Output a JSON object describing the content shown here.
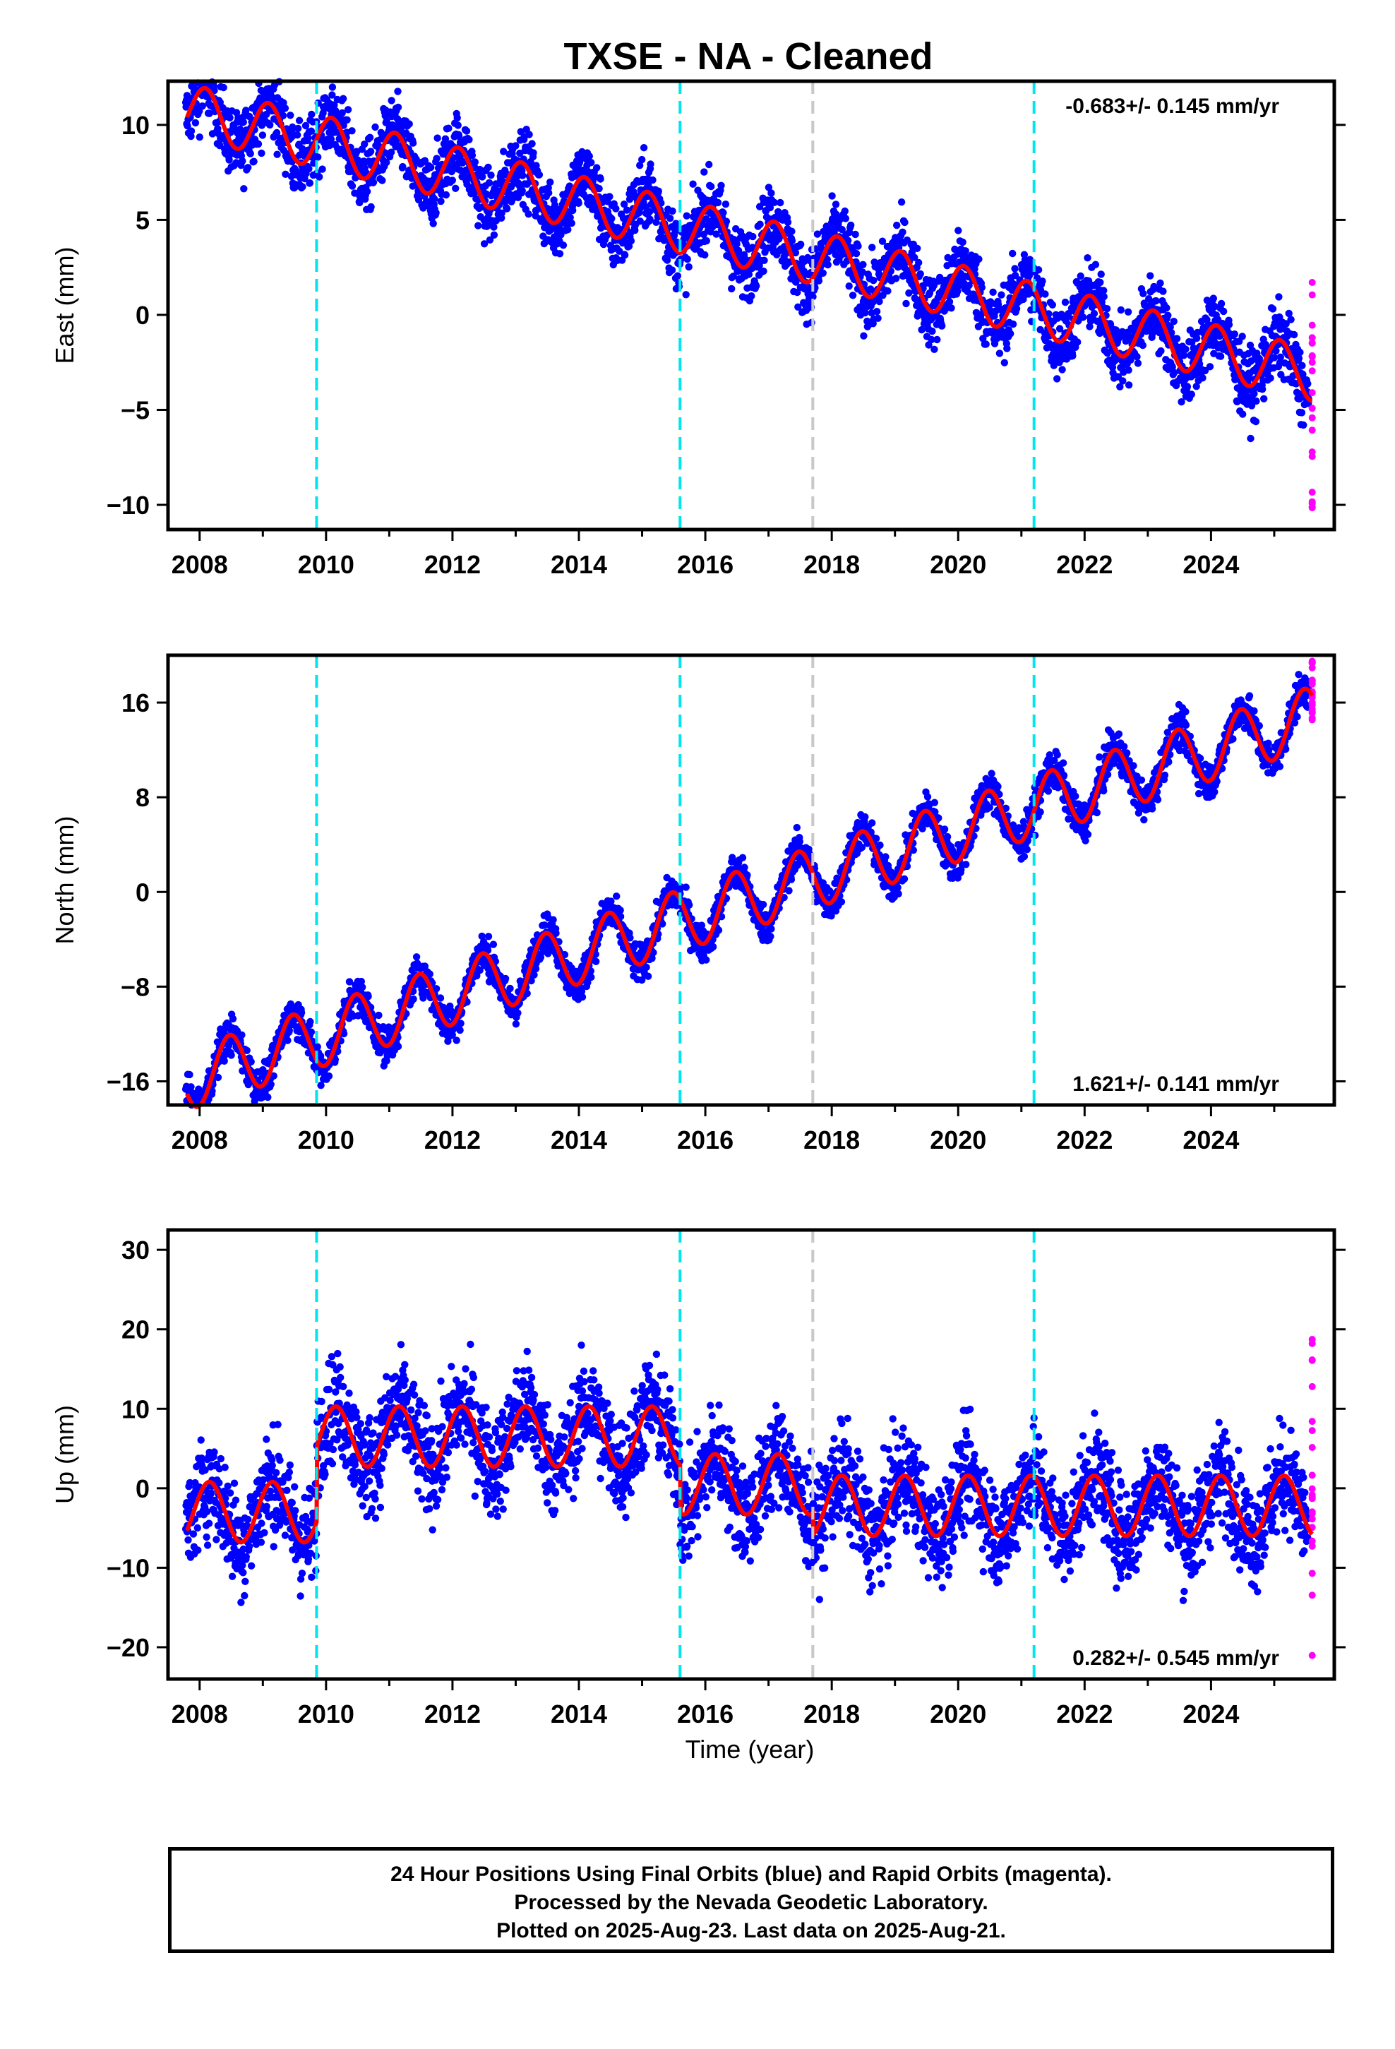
{
  "chart_data": {
    "title": "TXSE  - NA - Cleaned",
    "xlabel": "Time (year)",
    "xlim": [
      2007.5,
      2025.95
    ],
    "xticks": [
      2008,
      2010,
      2012,
      2014,
      2016,
      2018,
      2020,
      2022,
      2024
    ],
    "series_colors": {
      "final": "#0000ff",
      "rapid": "#ff00ff",
      "model": "#ff0000"
    },
    "break_lines": [
      {
        "x": 2009.85,
        "color": "#00e5ee",
        "style": "dashed"
      },
      {
        "x": 2015.6,
        "color": "#00e5ee",
        "style": "dashed"
      },
      {
        "x": 2017.7,
        "color": "#c8c8c8",
        "style": "dashed"
      },
      {
        "x": 2021.2,
        "color": "#00e5ee",
        "style": "dashed"
      }
    ],
    "panels": [
      {
        "type": "scatter",
        "ylabel": "East (mm)",
        "ylim": [
          -11.3,
          12.3
        ],
        "yticks": [
          10,
          5,
          0,
          -5,
          -10
        ],
        "ytick_labels": [
          "10",
          "5",
          "0",
          "−5",
          "−10"
        ],
        "rate_label": "-0.683+/- 0.145 mm/yr",
        "rate_position": "top-right",
        "trend": {
          "a": 10.6,
          "b": -0.78
        },
        "season": {
          "amp": 1.4,
          "phase": 1.0
        },
        "spread": 1.3,
        "offsets": [],
        "rapid_range": [
          -10.3,
          1.8
        ]
      },
      {
        "type": "scatter",
        "ylabel": "North (mm)",
        "ylim": [
          -18,
          20
        ],
        "yticks": [
          16,
          8,
          0,
          -8,
          -16
        ],
        "ytick_labels": [
          "16",
          "8",
          "0",
          "−8",
          "−16"
        ],
        "rate_label": "1.621+/- 0.141 mm/yr",
        "rate_position": "bottom-right",
        "trend": {
          "a": -15.5,
          "b": 1.72
        },
        "season": {
          "amp": 2.6,
          "phase": -1.4
        },
        "spread": 1.1,
        "offsets": [],
        "rapid_range": [
          14.5,
          19.5
        ]
      },
      {
        "type": "scatter",
        "ylabel": "Up (mm)",
        "ylim": [
          -24,
          32.5
        ],
        "yticks": [
          30,
          20,
          10,
          0,
          -10,
          -20
        ],
        "ytick_labels": [
          "30",
          "20",
          "10",
          "0",
          "−10",
          "−20"
        ],
        "rate_label": "0.282+/- 0.545 mm/yr",
        "rate_position": "bottom-right",
        "trend": {
          "a": -3.0,
          "b": 0.0
        },
        "season": {
          "amp": 3.8,
          "phase": 0.6
        },
        "spread": 4.5,
        "offsets": [
          {
            "from": 2009.85,
            "to": 2015.6,
            "shift": 9.5
          },
          {
            "from": 2015.6,
            "to": 2017.7,
            "shift": 3.5
          },
          {
            "from": 2017.7,
            "to": 2026.0,
            "shift": 0.8
          }
        ],
        "rapid_range": [
          -21.5,
          18.8
        ]
      }
    ]
  },
  "footer": {
    "line1": "24 Hour Positions Using Final Orbits (blue) and Rapid Orbits (magenta).",
    "line2": "Processed by the Nevada Geodetic Laboratory.",
    "line3": "Plotted on 2025-Aug-23. Last data on 2025-Aug-21."
  }
}
